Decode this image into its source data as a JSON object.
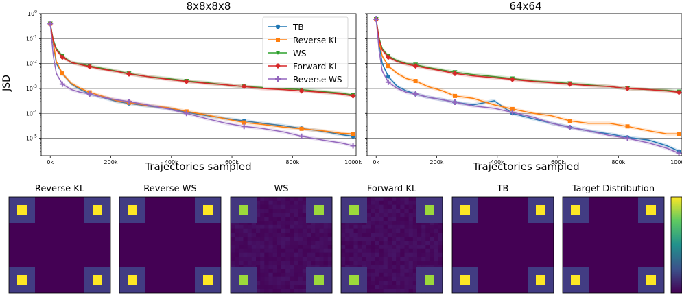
{
  "chart_data": [
    {
      "type": "line",
      "title": "8x8x8x8",
      "xlabel": "Trajectories sampled",
      "ylabel": "JSD",
      "xlim": [
        -30000,
        1010000
      ],
      "ylim": [
        2e-06,
        1
      ],
      "yscale": "log",
      "grid": "horizontal",
      "legend_position": "top-right",
      "xtick_labels": [
        "0k",
        "200k",
        "400k",
        "600k",
        "800k",
        "1000k"
      ],
      "xticks": [
        0,
        200000,
        400000,
        600000,
        800000,
        1000000
      ],
      "ytick_labels": [
        "10^-5",
        "10^-4",
        "10^-3",
        "10^-2",
        "10^-1",
        "10^0"
      ],
      "yticks": [
        1e-05,
        0.0001,
        0.001,
        0.01,
        0.1,
        1
      ],
      "x": [
        0,
        10000,
        20000,
        40000,
        70000,
        100000,
        130000,
        170000,
        220000,
        260000,
        320000,
        390000,
        450000,
        520000,
        580000,
        640000,
        700000,
        770000,
        830000,
        900000,
        960000,
        1000000
      ],
      "series": [
        {
          "name": "TB",
          "color": "#1f77b4",
          "marker": "circle",
          "values": [
            0.4,
            0.06,
            0.01,
            0.004,
            0.0015,
            0.0009,
            0.0006,
            0.00045,
            0.0003,
            0.00025,
            0.0002,
            0.00016,
            0.00011,
            8e-05,
            6.2e-05,
            5e-05,
            4e-05,
            3.2e-05,
            2.5e-05,
            1.9e-05,
            1.4e-05,
            1.2e-05
          ]
        },
        {
          "name": "Reverse KL",
          "color": "#ff7f0e",
          "marker": "square",
          "values": [
            0.4,
            0.07,
            0.012,
            0.004,
            0.0016,
            0.001,
            0.0007,
            0.0005,
            0.00032,
            0.00027,
            0.00021,
            0.00017,
            0.00012,
            8.5e-05,
            6e-05,
            4.3e-05,
            3.6e-05,
            2.8e-05,
            2.4e-05,
            2e-05,
            1.6e-05,
            1.5e-05
          ]
        },
        {
          "name": "WS",
          "color": "#2ca02c",
          "marker": "triangle-down",
          "values": [
            0.4,
            0.09,
            0.04,
            0.02,
            0.011,
            0.0095,
            0.008,
            0.0065,
            0.005,
            0.004,
            0.003,
            0.0025,
            0.002,
            0.0017,
            0.0014,
            0.0012,
            0.0011,
            0.001,
            0.0009,
            0.00075,
            0.00065,
            0.00055
          ]
        },
        {
          "name": "Forward KL",
          "color": "#d62728",
          "marker": "diamond",
          "values": [
            0.4,
            0.08,
            0.035,
            0.018,
            0.011,
            0.009,
            0.0075,
            0.006,
            0.0048,
            0.0038,
            0.003,
            0.0023,
            0.0019,
            0.0016,
            0.0014,
            0.0012,
            0.001,
            0.0009,
            0.0008,
            0.0007,
            0.0006,
            0.0005
          ]
        },
        {
          "name": "Reverse WS",
          "color": "#9467bd",
          "marker": "plus",
          "values": [
            0.4,
            0.02,
            0.004,
            0.0015,
            0.0009,
            0.0007,
            0.0006,
            0.00045,
            0.00035,
            0.0003,
            0.00022,
            0.00015,
            0.0001,
            6e-05,
            4e-05,
            3e-05,
            2.5e-05,
            1.8e-05,
            1.2e-05,
            8.5e-06,
            6.5e-06,
            5e-06
          ]
        }
      ]
    },
    {
      "type": "line",
      "title": "64x64",
      "xlabel": "Trajectories sampled",
      "ylabel": "",
      "xlim": [
        -30000,
        1010000
      ],
      "ylim": [
        2e-06,
        1
      ],
      "yscale": "log",
      "grid": "horizontal",
      "xtick_labels": [
        "0k",
        "200k",
        "400k",
        "600k",
        "800k",
        "1000k"
      ],
      "xticks": [
        0,
        200000,
        400000,
        600000,
        800000,
        1000000
      ],
      "x": [
        0,
        10000,
        20000,
        40000,
        70000,
        100000,
        130000,
        170000,
        220000,
        260000,
        320000,
        390000,
        450000,
        520000,
        580000,
        640000,
        700000,
        770000,
        830000,
        900000,
        960000,
        1000000
      ],
      "series": [
        {
          "name": "TB",
          "color": "#1f77b4",
          "marker": "circle",
          "values": [
            0.6,
            0.06,
            0.01,
            0.003,
            0.0012,
            0.0008,
            0.0006,
            0.00045,
            0.00035,
            0.00028,
            0.00022,
            0.00032,
            0.0001,
            6e-05,
            4e-05,
            2.8e-05,
            2e-05,
            1.5e-05,
            1.1e-05,
            8.5e-06,
            5e-06,
            3e-06
          ]
        },
        {
          "name": "Reverse KL",
          "color": "#ff7f0e",
          "marker": "square",
          "values": [
            0.6,
            0.07,
            0.02,
            0.008,
            0.004,
            0.0025,
            0.002,
            0.0012,
            0.0008,
            0.0005,
            0.0004,
            0.00022,
            0.00015,
            0.0001,
            8e-05,
            5e-05,
            4e-05,
            4e-05,
            3e-05,
            2e-05,
            1.5e-05,
            1.5e-05
          ]
        },
        {
          "name": "WS",
          "color": "#2ca02c",
          "marker": "triangle-down",
          "values": [
            0.6,
            0.1,
            0.04,
            0.02,
            0.013,
            0.01,
            0.009,
            0.007,
            0.0055,
            0.0045,
            0.0036,
            0.003,
            0.0025,
            0.002,
            0.0018,
            0.0016,
            0.0014,
            0.0012,
            0.001,
            0.0009,
            0.00085,
            0.00075
          ]
        },
        {
          "name": "Forward KL",
          "color": "#d62728",
          "marker": "diamond",
          "values": [
            0.6,
            0.09,
            0.035,
            0.018,
            0.012,
            0.0095,
            0.008,
            0.0065,
            0.005,
            0.004,
            0.0032,
            0.0027,
            0.0023,
            0.0019,
            0.0017,
            0.0015,
            0.0013,
            0.0012,
            0.001,
            0.0009,
            0.0008,
            0.0007
          ]
        },
        {
          "name": "Reverse WS",
          "color": "#9467bd",
          "marker": "plus",
          "values": [
            0.6,
            0.03,
            0.005,
            0.0018,
            0.001,
            0.0007,
            0.0006,
            0.00045,
            0.00035,
            0.00028,
            0.0002,
            0.00016,
            0.00011,
            7e-05,
            4e-05,
            2.7e-05,
            2e-05,
            1.3e-05,
            1e-05,
            6.5e-06,
            4e-06,
            2.5e-06
          ]
        }
      ]
    },
    {
      "type": "heatmap",
      "panels": [
        {
          "title": "Reverse KL",
          "corner_value": 1.0,
          "halo_value": 0.18,
          "background_value": 0.0,
          "noise": 0.0
        },
        {
          "title": "Reverse WS",
          "corner_value": 1.0,
          "halo_value": 0.18,
          "background_value": 0.0,
          "noise": 0.0
        },
        {
          "title": "WS",
          "corner_value": 0.85,
          "halo_value": 0.16,
          "background_value": 0.03,
          "noise": 0.05
        },
        {
          "title": "Forward KL",
          "corner_value": 0.85,
          "halo_value": 0.16,
          "background_value": 0.03,
          "noise": 0.05
        },
        {
          "title": "TB",
          "corner_value": 1.0,
          "halo_value": 0.18,
          "background_value": 0.0,
          "noise": 0.0
        },
        {
          "title": "Target Distribution",
          "corner_value": 1.0,
          "halo_value": 0.18,
          "background_value": 0.0,
          "noise": 0.0
        }
      ],
      "colormap": "viridis",
      "colorbar": true
    }
  ]
}
